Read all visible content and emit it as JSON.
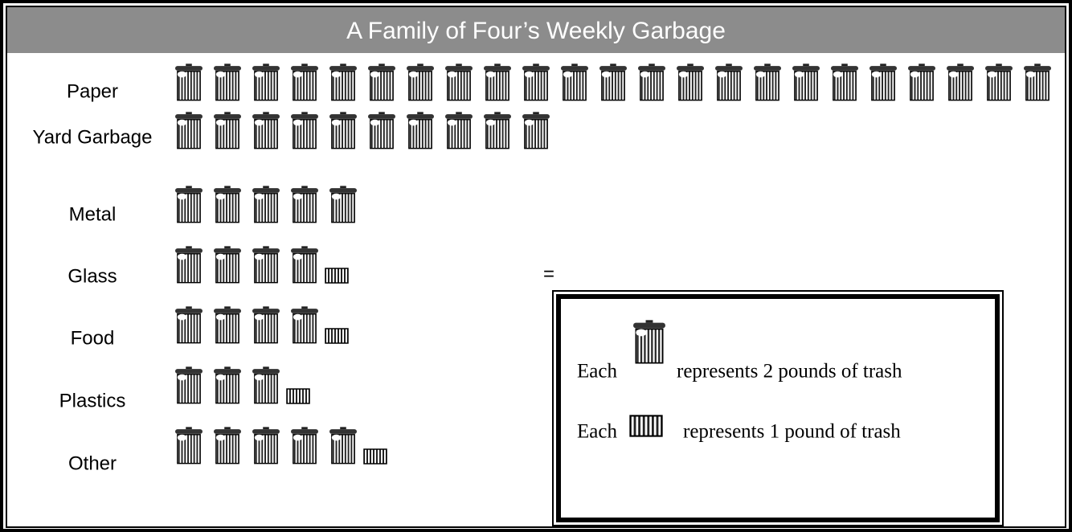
{
  "chart_data": {
    "type": "pictograph",
    "title": "A Family of Four’s Weekly Garbage",
    "categories": [
      "Paper",
      "Yard Garbage",
      "Metal",
      "Glass",
      "Food",
      "Plastics",
      "Other"
    ],
    "values": [
      46,
      20,
      10,
      9,
      9,
      7,
      11
    ],
    "annotation": "=",
    "legend": [
      {
        "prefix": "Each",
        "value": 2,
        "label": "represents 2 pounds of trash"
      },
      {
        "prefix": "Each",
        "value": 1,
        "label": "represents 1 pound of trash"
      }
    ]
  }
}
